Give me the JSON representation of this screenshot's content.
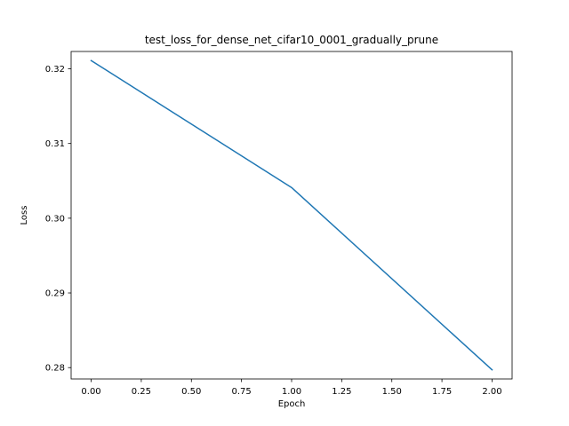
{
  "chart_data": {
    "type": "line",
    "title": "test_loss_for_dense_net_cifar10_0001_gradually_prune",
    "xlabel": "Epoch",
    "ylabel": "Loss",
    "x": [
      0,
      1,
      2
    ],
    "series": [
      {
        "values": [
          0.3211,
          0.3041,
          0.2797
        ],
        "color": "#1f77b4"
      }
    ],
    "xlim": [
      -0.1,
      2.1
    ],
    "ylim": [
      0.27848,
      0.32232
    ],
    "xticks": [
      0.0,
      0.25,
      0.5,
      0.75,
      1.0,
      1.25,
      1.5,
      1.75,
      2.0
    ],
    "xtick_labels": [
      "0.00",
      "0.25",
      "0.50",
      "0.75",
      "1.00",
      "1.25",
      "1.50",
      "1.75",
      "2.00"
    ],
    "yticks": [
      0.28,
      0.29,
      0.3,
      0.31,
      0.32
    ],
    "ytick_labels": [
      "0.28",
      "0.29",
      "0.30",
      "0.31",
      "0.32"
    ],
    "grid": false,
    "legend": "none"
  }
}
